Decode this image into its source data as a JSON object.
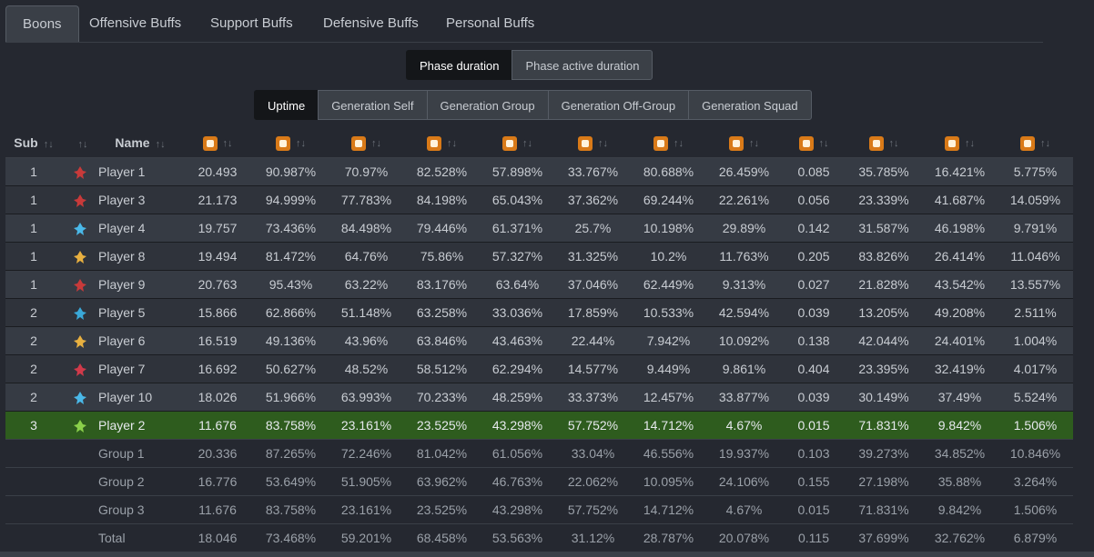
{
  "tabs": [
    "Boons",
    "Offensive Buffs",
    "Support Buffs",
    "Defensive Buffs",
    "Personal Buffs"
  ],
  "duration_buttons": [
    "Phase duration",
    "Phase active duration"
  ],
  "mode_buttons": [
    "Uptime",
    "Generation Self",
    "Generation Group",
    "Generation Off-Group",
    "Generation Squad"
  ],
  "headers": {
    "sub": "Sub",
    "name": "Name",
    "sort_glyph": "↑↓",
    "sort_glyph_active": "↑"
  },
  "boon_icons": [
    "might-icon",
    "fury-icon",
    "quickness-icon",
    "alacrity-icon",
    "protection-icon",
    "regeneration-icon",
    "vigor-icon",
    "aegis-icon",
    "stability-icon",
    "swiftness-icon",
    "resistance-icon",
    "resolution-icon"
  ],
  "players": [
    {
      "sub": "1",
      "name": "Player 1",
      "icon": "berserker-icon",
      "color": "#c83a3a",
      "values": [
        "20.493",
        "90.987%",
        "70.97%",
        "82.528%",
        "57.898%",
        "33.767%",
        "80.688%",
        "26.459%",
        "0.085",
        "35.785%",
        "16.421%",
        "5.775%"
      ]
    },
    {
      "sub": "1",
      "name": "Player 3",
      "icon": "berserker-icon",
      "color": "#c83a3a",
      "values": [
        "21.173",
        "94.999%",
        "77.783%",
        "84.198%",
        "65.043%",
        "37.362%",
        "69.244%",
        "22.261%",
        "0.056",
        "23.339%",
        "41.687%",
        "14.059%"
      ]
    },
    {
      "sub": "1",
      "name": "Player 4",
      "icon": "tempest-icon",
      "color": "#4ab8e8",
      "values": [
        "19.757",
        "73.436%",
        "84.498%",
        "79.446%",
        "61.371%",
        "25.7%",
        "10.198%",
        "29.89%",
        "0.142",
        "31.587%",
        "46.198%",
        "9.791%"
      ]
    },
    {
      "sub": "1",
      "name": "Player 8",
      "icon": "firebrand-icon",
      "color": "#e8b040",
      "values": [
        "19.494",
        "81.472%",
        "64.76%",
        "75.86%",
        "57.327%",
        "31.325%",
        "10.2%",
        "11.763%",
        "0.205",
        "83.826%",
        "26.414%",
        "11.046%"
      ]
    },
    {
      "sub": "1",
      "name": "Player 9",
      "icon": "berserker-icon",
      "color": "#c83a3a",
      "values": [
        "20.763",
        "95.43%",
        "63.22%",
        "83.176%",
        "63.64%",
        "37.046%",
        "62.449%",
        "9.313%",
        "0.027",
        "21.828%",
        "43.542%",
        "13.557%"
      ]
    },
    {
      "sub": "2",
      "name": "Player 5",
      "icon": "chronomancer-icon",
      "color": "#3aa8d8",
      "values": [
        "15.866",
        "62.866%",
        "51.148%",
        "63.258%",
        "33.036%",
        "17.859%",
        "10.533%",
        "42.594%",
        "0.039",
        "13.205%",
        "49.208%",
        "2.511%"
      ]
    },
    {
      "sub": "2",
      "name": "Player 6",
      "icon": "firebrand-icon",
      "color": "#e8b040",
      "values": [
        "16.519",
        "49.136%",
        "43.96%",
        "63.846%",
        "43.463%",
        "22.44%",
        "7.942%",
        "10.092%",
        "0.138",
        "42.044%",
        "24.401%",
        "1.004%"
      ]
    },
    {
      "sub": "2",
      "name": "Player 7",
      "icon": "scourge-icon",
      "color": "#d03a4a",
      "values": [
        "16.692",
        "50.627%",
        "48.52%",
        "58.512%",
        "62.294%",
        "14.577%",
        "9.449%",
        "9.861%",
        "0.404",
        "23.395%",
        "32.419%",
        "4.017%"
      ]
    },
    {
      "sub": "2",
      "name": "Player 10",
      "icon": "tempest-icon",
      "color": "#4ab8e8",
      "values": [
        "18.026",
        "51.966%",
        "63.993%",
        "70.233%",
        "48.259%",
        "33.373%",
        "12.457%",
        "33.877%",
        "0.039",
        "30.149%",
        "37.49%",
        "5.524%"
      ]
    },
    {
      "sub": "3",
      "name": "Player 2",
      "icon": "druid-icon",
      "color": "#8ad04a",
      "highlight": true,
      "values": [
        "11.676",
        "83.758%",
        "23.161%",
        "23.525%",
        "43.298%",
        "57.752%",
        "14.712%",
        "4.67%",
        "0.015",
        "71.831%",
        "9.842%",
        "1.506%"
      ]
    }
  ],
  "groups": [
    {
      "name": "Group 1",
      "values": [
        "20.336",
        "87.265%",
        "72.246%",
        "81.042%",
        "61.056%",
        "33.04%",
        "46.556%",
        "19.937%",
        "0.103",
        "39.273%",
        "34.852%",
        "10.846%"
      ]
    },
    {
      "name": "Group 2",
      "values": [
        "16.776",
        "53.649%",
        "51.905%",
        "63.962%",
        "46.763%",
        "22.062%",
        "10.095%",
        "24.106%",
        "0.155",
        "27.198%",
        "35.88%",
        "3.264%"
      ]
    },
    {
      "name": "Group 3",
      "values": [
        "11.676",
        "83.758%",
        "23.161%",
        "23.525%",
        "43.298%",
        "57.752%",
        "14.712%",
        "4.67%",
        "0.015",
        "71.831%",
        "9.842%",
        "1.506%"
      ]
    },
    {
      "name": "Total",
      "values": [
        "18.046",
        "73.468%",
        "59.201%",
        "68.458%",
        "53.563%",
        "31.12%",
        "28.787%",
        "20.078%",
        "0.115",
        "37.699%",
        "32.762%",
        "6.879%"
      ]
    }
  ],
  "colors": {
    "accent_row": "#2e5c1e",
    "boon_icon": "#d97a18"
  }
}
